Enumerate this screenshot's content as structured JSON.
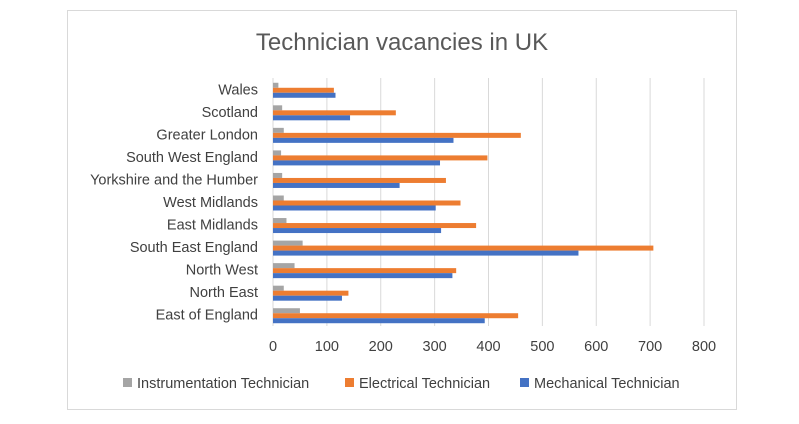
{
  "chart_data": {
    "type": "bar",
    "orientation": "horizontal",
    "title": "Technician vacancies in UK",
    "xlabel": "",
    "ylabel": "",
    "xlim": [
      0,
      800
    ],
    "x_ticks": [
      0,
      100,
      200,
      300,
      400,
      500,
      600,
      700,
      800
    ],
    "grid": "vertical",
    "legend_position": "bottom",
    "categories": [
      "Wales",
      "Scotland",
      "Greater London",
      "South West England",
      "Yorkshire and the Humber",
      "West Midlands",
      "East Midlands",
      "South East England",
      "North West",
      "North East",
      "East of England"
    ],
    "series": [
      {
        "name": "Instrumentation Technician",
        "color": "#a5a5a5",
        "values": [
          10,
          17,
          20,
          15,
          17,
          20,
          25,
          55,
          40,
          20,
          50
        ]
      },
      {
        "name": "Electrical Technician",
        "color": "#ed7d31",
        "values": [
          113,
          228,
          460,
          398,
          321,
          348,
          377,
          706,
          340,
          140,
          455
        ]
      },
      {
        "name": "Mechanical Technician",
        "color": "#4472c4",
        "values": [
          116,
          143,
          335,
          310,
          235,
          302,
          312,
          567,
          333,
          128,
          393
        ]
      }
    ]
  }
}
